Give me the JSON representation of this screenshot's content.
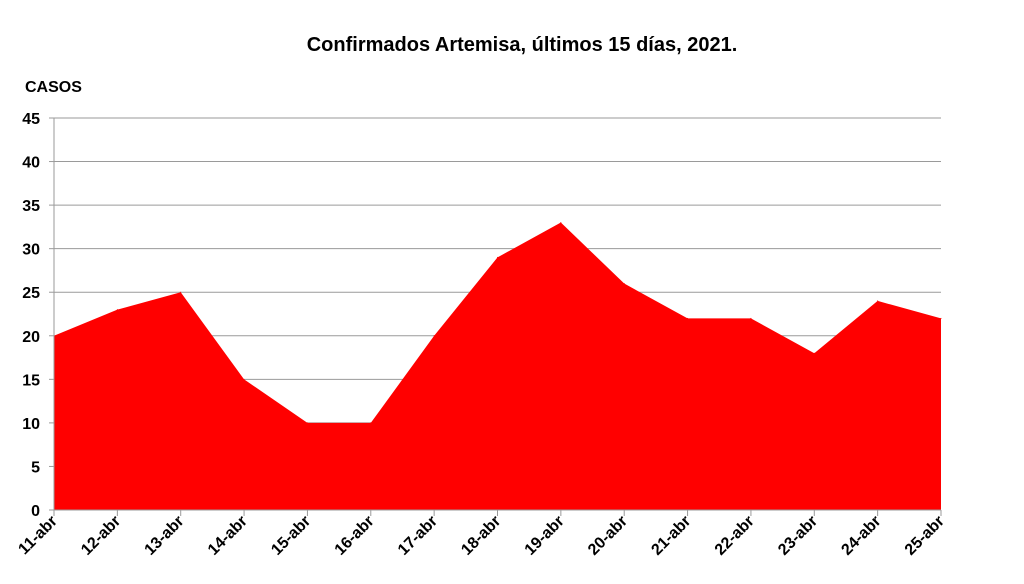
{
  "chart_data": {
    "type": "area",
    "title": "Confirmados Artemisa, últimos 15 días,  2021.",
    "ylabel": "CASOS",
    "xlabel": "",
    "categories": [
      "11-abr",
      "12-abr",
      "13-abr",
      "14-abr",
      "15-abr",
      "16-abr",
      "17-abr",
      "18-abr",
      "19-abr",
      "20-abr",
      "21-abr",
      "22-abr",
      "23-abr",
      "24-abr",
      "25-abr"
    ],
    "values": [
      20,
      23,
      25,
      15,
      10,
      10,
      20,
      29,
      33,
      26,
      22,
      22,
      18,
      24,
      22
    ],
    "ylim": [
      0,
      45
    ],
    "yticks": [
      "0",
      "5",
      "10",
      "15",
      "20",
      "25",
      "30",
      "35",
      "40",
      "45"
    ],
    "grid": true,
    "legend": "none",
    "colors": {
      "fill": "#ff0000",
      "grid": "#9a9a9a",
      "text": "#000000"
    }
  }
}
